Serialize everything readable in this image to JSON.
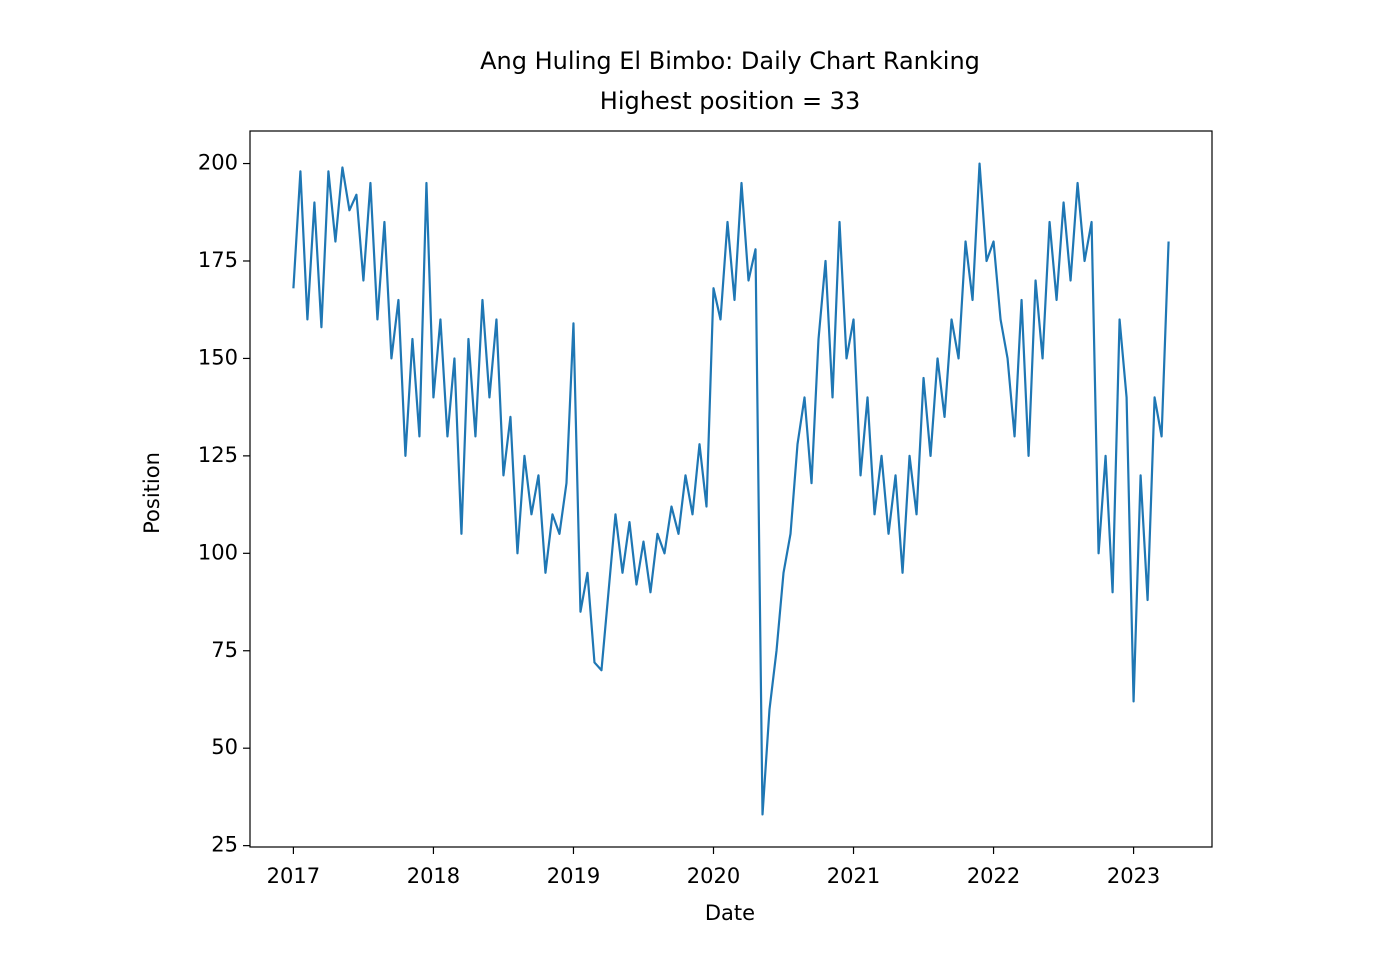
{
  "chart_data": {
    "type": "line",
    "title": "Ang Huling El Bimbo: Daily Chart Ranking",
    "subtitle": "Highest position = 33",
    "x_label": "Date",
    "y_label": "Position",
    "x": [
      2017.0,
      2017.05,
      2017.1,
      2017.15,
      2017.2,
      2017.25,
      2017.3,
      2017.35,
      2017.4,
      2017.45,
      2017.5,
      2017.55,
      2017.6,
      2017.65,
      2017.7,
      2017.75,
      2017.8,
      2017.85,
      2017.9,
      2017.95,
      2018.0,
      2018.05,
      2018.1,
      2018.15,
      2018.2,
      2018.25,
      2018.3,
      2018.35,
      2018.4,
      2018.45,
      2018.5,
      2018.55,
      2018.6,
      2018.65,
      2018.7,
      2018.75,
      2018.8,
      2018.85,
      2018.9,
      2018.95,
      2019.0,
      2019.05,
      2019.1,
      2019.15,
      2019.2,
      2019.25,
      2019.3,
      2019.35,
      2019.4,
      2019.45,
      2019.5,
      2019.55,
      2019.6,
      2019.65,
      2019.7,
      2019.75,
      2019.8,
      2019.85,
      2019.9,
      2019.95,
      2020.0,
      2020.05,
      2020.1,
      2020.15,
      2020.2,
      2020.25,
      2020.3,
      2020.35,
      2020.4,
      2020.45,
      2020.5,
      2020.55,
      2020.6,
      2020.65,
      2020.7,
      2020.75,
      2020.8,
      2020.85,
      2020.9,
      2020.95,
      2021.0,
      2021.05,
      2021.1,
      2021.15,
      2021.2,
      2021.25,
      2021.3,
      2021.35,
      2021.4,
      2021.45,
      2021.5,
      2021.55,
      2021.6,
      2021.65,
      2021.7,
      2021.75,
      2021.8,
      2021.85,
      2021.9,
      2021.95,
      2022.0,
      2022.05,
      2022.1,
      2022.15,
      2022.2,
      2022.25,
      2022.3,
      2022.35,
      2022.4,
      2022.45,
      2022.5,
      2022.55,
      2022.6,
      2022.65,
      2022.7,
      2022.75,
      2022.8,
      2022.85,
      2022.9,
      2022.95,
      2023.0,
      2023.05,
      2023.1,
      2023.15,
      2023.2,
      2023.25
    ],
    "series": [
      {
        "color": "#1f77b4",
        "values": [
          168,
          198,
          160,
          190,
          158,
          198,
          180,
          199,
          188,
          192,
          170,
          195,
          160,
          185,
          150,
          165,
          125,
          155,
          130,
          195,
          140,
          160,
          130,
          150,
          105,
          155,
          130,
          165,
          140,
          160,
          120,
          135,
          100,
          125,
          110,
          120,
          95,
          110,
          105,
          118,
          159,
          85,
          95,
          72,
          70,
          90,
          110,
          95,
          108,
          92,
          103,
          90,
          105,
          100,
          112,
          105,
          120,
          110,
          128,
          112,
          168,
          160,
          185,
          165,
          195,
          170,
          178,
          33,
          60,
          75,
          95,
          105,
          128,
          140,
          118,
          155,
          175,
          140,
          185,
          150,
          160,
          120,
          140,
          110,
          125,
          105,
          120,
          95,
          125,
          110,
          145,
          125,
          150,
          135,
          160,
          150,
          180,
          165,
          200,
          175,
          180,
          160,
          150,
          130,
          165,
          125,
          170,
          150,
          185,
          165,
          190,
          170,
          195,
          175,
          185,
          100,
          125,
          90,
          160,
          140,
          62,
          120,
          88,
          140,
          130,
          180
        ]
      }
    ],
    "xlim": [
      2016.69,
      2023.56
    ],
    "ylim": [
      24.65,
      208.35
    ],
    "xticks": [
      2017,
      2018,
      2019,
      2020,
      2021,
      2022,
      2023
    ],
    "yticks": [
      25,
      50,
      75,
      100,
      125,
      150,
      175,
      200
    ]
  }
}
